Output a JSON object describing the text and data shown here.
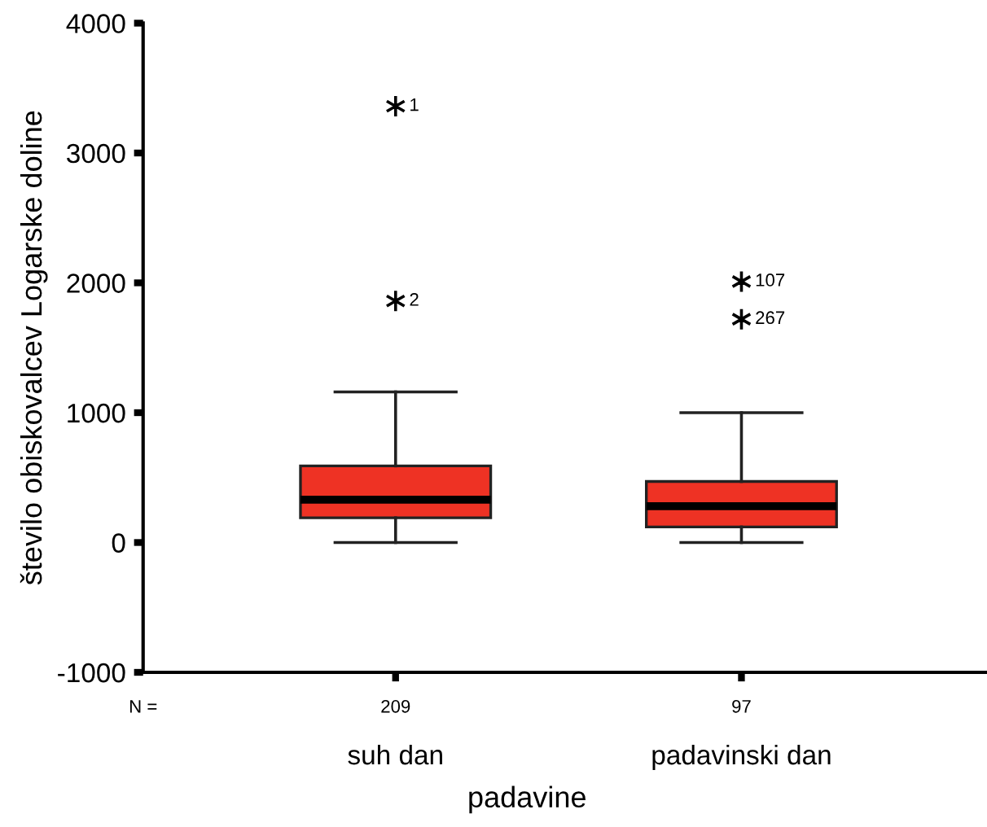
{
  "chart_data": {
    "type": "box",
    "xlabel": "padavine",
    "ylabel": "število obiskovalcev Logarske doline",
    "categories": [
      "suh dan",
      "padavinski dan"
    ],
    "boxes": [
      {
        "low": 0,
        "q1": 190,
        "median": 330,
        "q3": 590,
        "high": 1160,
        "outliers": [
          3360,
          1860
        ]
      },
      {
        "low": 0,
        "q1": 120,
        "median": 280,
        "q3": 470,
        "high": 1000,
        "outliers": [
          2010,
          1720
        ]
      }
    ],
    "color": "#ee3224",
    "marker": "star",
    "ylim": [
      -1000,
      4000
    ],
    "yticks": [
      -1000,
      0,
      1000,
      2000,
      3000,
      4000
    ],
    "grid": false,
    "legend": false,
    "annotations": [
      "N =",
      "209",
      "97",
      "1",
      "2",
      "107",
      "267"
    ]
  }
}
